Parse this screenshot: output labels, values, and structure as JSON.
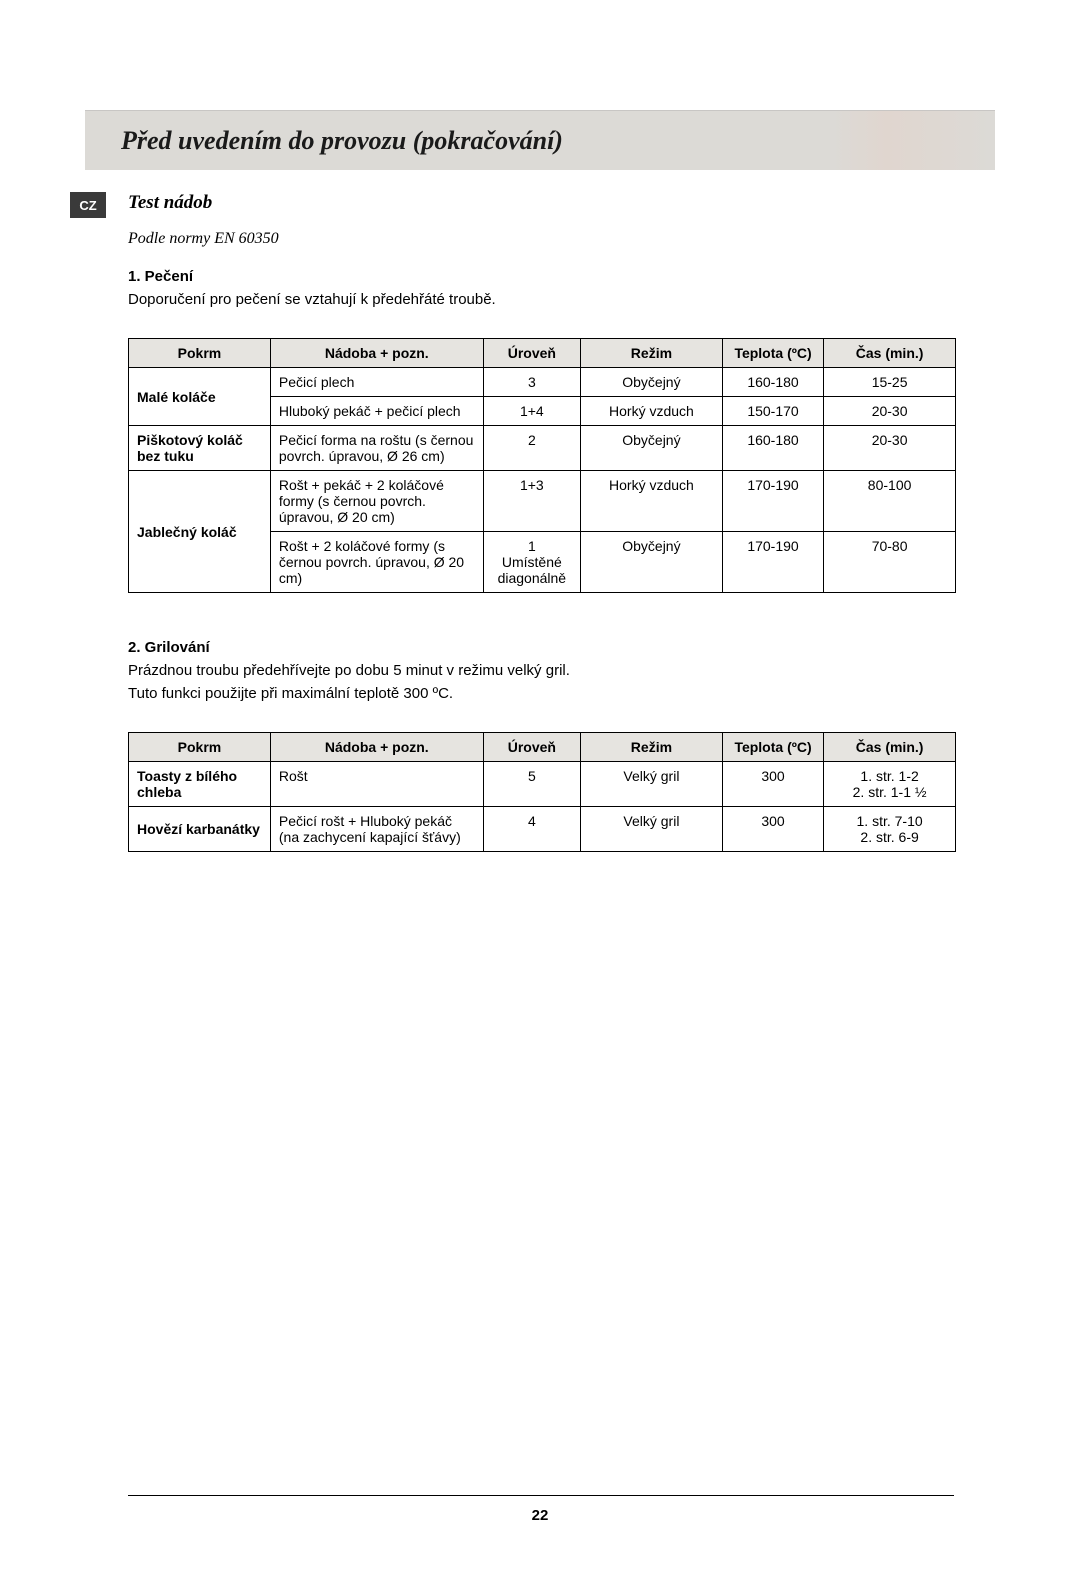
{
  "banner": {
    "title": "Před uvedením do provozu (pokračování)"
  },
  "lang_tag": "CZ",
  "section_title": "Test nádob",
  "subtitle": "Podle normy EN 60350",
  "baking": {
    "heading": "1. Pečení",
    "text": "Doporučení pro pečení se vztahují k předehřáté troubě.",
    "columns": [
      "Pokrm",
      "Nádoba + pozn.",
      "Úroveň",
      "Režim",
      "Teplota (ºC)",
      "Čas (min.)"
    ],
    "rows": [
      {
        "food": "Malé koláče",
        "rowspan": 2,
        "container": "Pečicí plech",
        "level": "3",
        "mode": "Obyčejný",
        "temp": "160-180",
        "time": "15-25"
      },
      {
        "food": null,
        "container": "Hluboký pekáč + pečicí plech",
        "level": "1+4",
        "mode": "Horký vzduch",
        "temp": "150-170",
        "time": "20-30"
      },
      {
        "food": "Piškotový koláč bez tuku",
        "rowspan": 1,
        "container": "Pečicí forma na roštu (s černou povrch. úpravou, Ø 26 cm)",
        "level": "2",
        "mode": "Obyčejný",
        "temp": "160-180",
        "time": "20-30"
      },
      {
        "food": "Jablečný koláč",
        "rowspan": 2,
        "container": "Rošt + pekáč + 2 koláčové formy (s černou povrch. úpravou, Ø 20 cm)",
        "level": "1+3",
        "mode": "Horký vzduch",
        "temp": "170-190",
        "time": "80-100"
      },
      {
        "food": null,
        "container": "Rošt + 2 koláčové formy (s černou povrch. úpravou, Ø 20 cm)",
        "level": "1\nUmístěné diagonálně",
        "mode": "Obyčejný",
        "temp": "170-190",
        "time": "70-80"
      }
    ]
  },
  "grilling": {
    "heading": "2. Grilování",
    "text1": "Prázdnou troubu předehřívejte po dobu 5 minut v režimu velký gril.",
    "text2": "Tuto funkci použijte při maximální teplotě 300 ºC.",
    "columns": [
      "Pokrm",
      "Nádoba + pozn.",
      "Úroveň",
      "Režim",
      "Teplota (ºC)",
      "Čas (min.)"
    ],
    "rows": [
      {
        "food": "Toasty z bílého chleba",
        "container": "Rošt",
        "level": "5",
        "mode": "Velký gril",
        "temp": "300",
        "time": "1. str. 1-2\n2. str. 1-1 ½"
      },
      {
        "food": "Hovězí karbanátky",
        "container": "Pečicí rošt + Hluboký pekáč (na zachycení kapající šťávy)",
        "level": "4",
        "mode": "Velký gril",
        "temp": "300",
        "time": "1. str. 7-10\n2. str. 6-9"
      }
    ]
  },
  "page_number": "22",
  "style": {
    "banner_bg": "#dcdad6",
    "th_bg": "#e6e4e0",
    "text_color": "#000000",
    "tag_bg": "#3a3a3a",
    "body_font_size": 15,
    "table_font_size": 14,
    "title_font_size": 26
  }
}
